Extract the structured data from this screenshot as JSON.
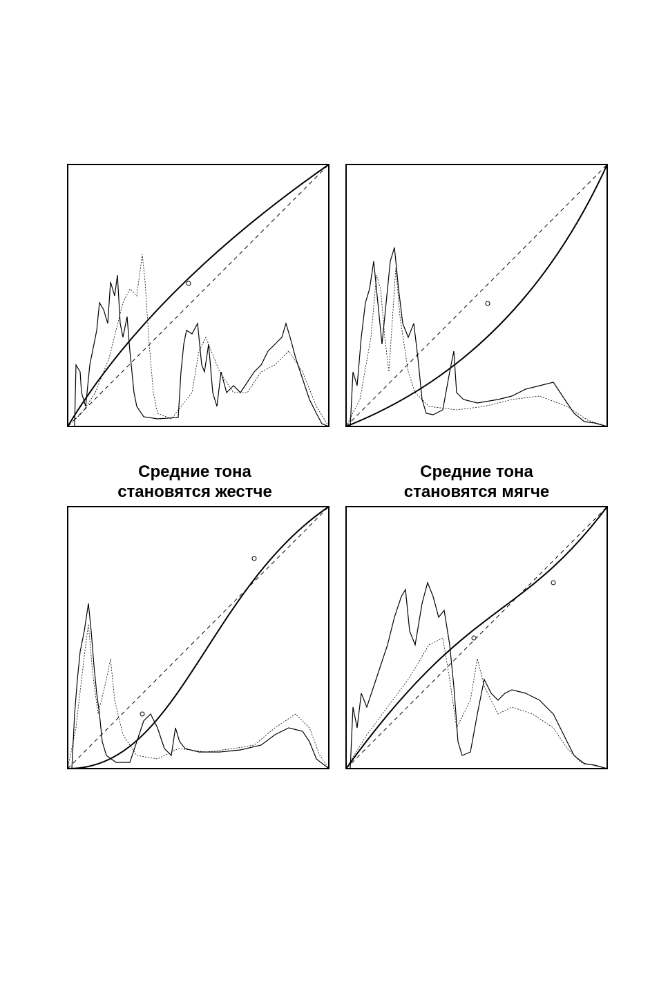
{
  "captions": [
    {
      "line1": "Средние тона",
      "line2": "становятся жестче"
    },
    {
      "line1": "Средние тона",
      "line2": "становятся мягче"
    }
  ]
}
